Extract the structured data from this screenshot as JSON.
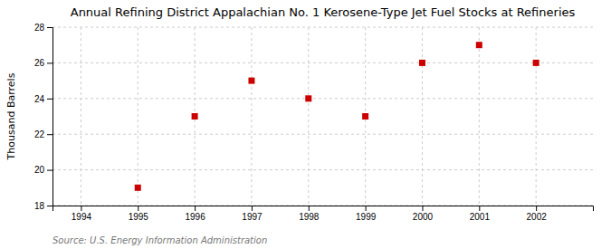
{
  "chart_data": {
    "type": "scatter",
    "title": "Annual Refining District Appalachian No. 1 Kerosene-Type Jet Fuel Stocks at Refineries",
    "ylabel": "Thousand Barrels",
    "source": "Source: U.S. Energy Information Administration",
    "x": [
      1995,
      1996,
      1997,
      1998,
      1999,
      2000,
      2001,
      2002
    ],
    "y": [
      19,
      23,
      25,
      24,
      23,
      26,
      27,
      26
    ],
    "xlim": [
      1993.5,
      2003.0
    ],
    "ylim": [
      18,
      28
    ],
    "xticks": [
      1994,
      1995,
      1996,
      1997,
      1998,
      1999,
      2000,
      2001,
      2002
    ],
    "yticks": [
      18,
      20,
      22,
      24,
      26,
      28
    ],
    "color": "#cc0000",
    "marker": "square",
    "grid": true
  }
}
